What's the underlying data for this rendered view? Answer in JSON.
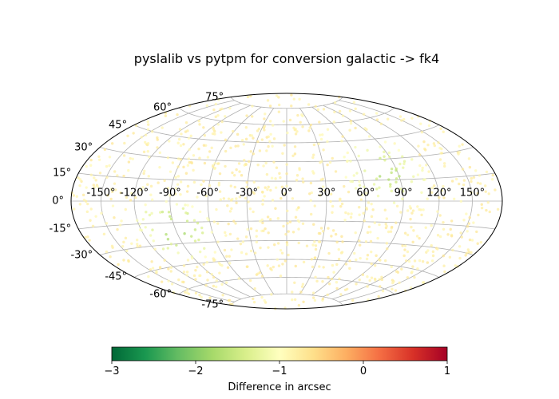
{
  "chart_data": {
    "type": "scatter",
    "projection": "hammer",
    "title": "pyslalib vs pytpm for conversion galactic -> fk4",
    "xlabel": "",
    "ylabel": "",
    "grid": true,
    "lon_ticks": [
      -150,
      -120,
      -90,
      -60,
      -30,
      0,
      30,
      60,
      90,
      120,
      150
    ],
    "lat_ticks": [
      -75,
      -60,
      -45,
      -30,
      -15,
      0,
      15,
      30,
      45,
      60,
      75
    ],
    "lon_tick_labels": [
      "-150°",
      "-120°",
      "-90°",
      "-60°",
      "-30°",
      "0°",
      "30°",
      "60°",
      "90°",
      "120°",
      "150°"
    ],
    "lat_tick_labels": [
      "-75°",
      "-60°",
      "-45°",
      "-30°",
      "-15°",
      "0°",
      "15°",
      "30°",
      "45°",
      "60°",
      "75°"
    ],
    "colorbar": {
      "label": "Difference in arcsec",
      "colormap": "RdYlGn_r",
      "range": [
        -3,
        1
      ],
      "ticks": [
        -3,
        -2,
        -1,
        0,
        1
      ],
      "tick_labels": [
        "−3",
        "−2",
        "−1",
        "0",
        "1"
      ],
      "stops": [
        "#006837",
        "#1a9850",
        "#66bd63",
        "#a6d96a",
        "#d9ef8b",
        "#ffffbf",
        "#fee08b",
        "#fdae61",
        "#f46d43",
        "#d73027",
        "#a50026"
      ]
    },
    "points_description": "about 1000 random positions covering the full sky; differences mostly near -0.8 arcsec, with a few near -2 arcsec around (-90°, -20°) and (80°, 20°)",
    "sample_count": 1000,
    "sample_seed": 12345,
    "typical_value": -0.8,
    "low_clusters": [
      {
        "lon": -90,
        "lat": -20,
        "value": -2.0
      },
      {
        "lon": 80,
        "lat": 20,
        "value": -1.8
      }
    ]
  }
}
